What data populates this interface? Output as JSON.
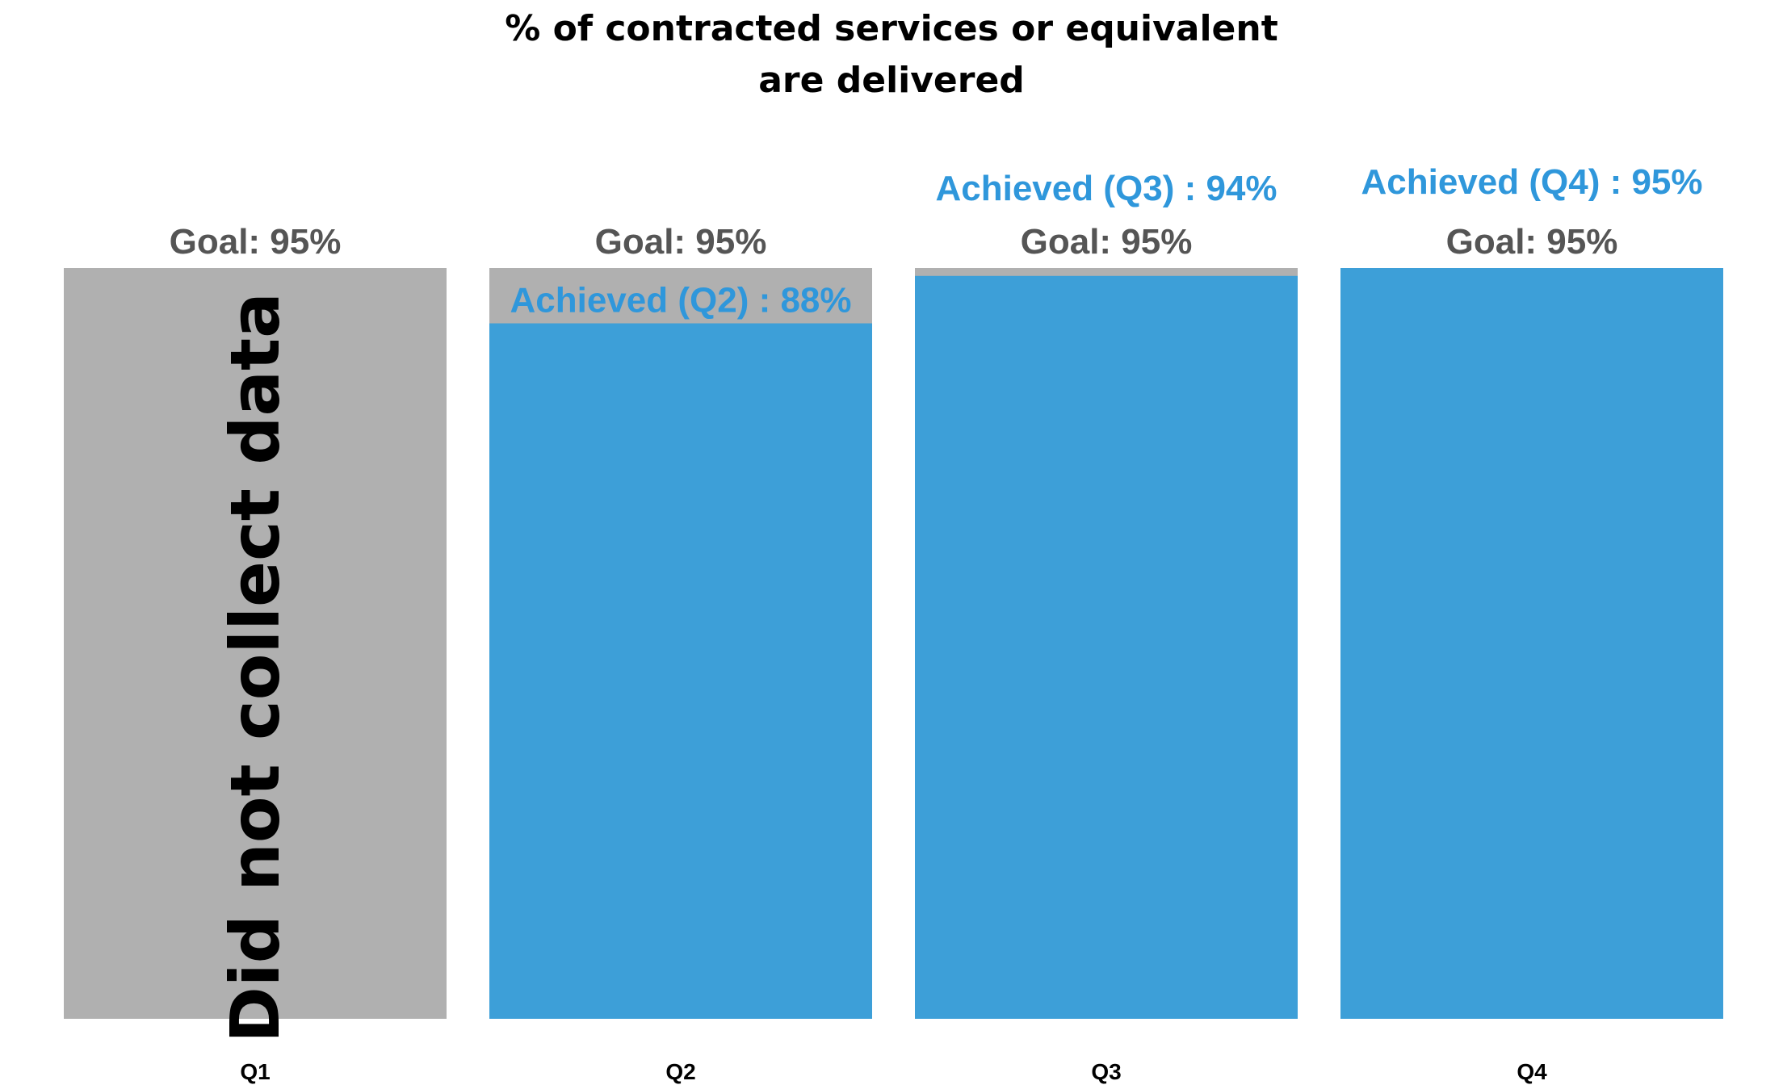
{
  "chart_data": {
    "type": "bar",
    "title_lines": [
      "% of contracted services or equivalent",
      "are delivered"
    ],
    "categories": [
      "Q1",
      "Q2",
      "Q3",
      "Q4"
    ],
    "goal": [
      95,
      95,
      95,
      95
    ],
    "achieved": [
      null,
      88,
      94,
      95
    ],
    "goal_labels": [
      "Goal: 95%",
      "Goal: 95%",
      "Goal: 95%",
      "Goal: 95%"
    ],
    "achieved_labels": [
      "",
      "Achieved (Q2) : 88%",
      "Achieved (Q3) : 94%",
      "Achieved (Q4) : 95%"
    ],
    "no_data_label": "Did not collect data",
    "no_data_index": 0,
    "ylim": [
      0,
      95
    ],
    "grid": false,
    "colors": {
      "goal": "#B0B0B0",
      "achieved": "#3D9FD8",
      "achieved_text": "#2F97DB",
      "goal_text": "#555555"
    }
  }
}
